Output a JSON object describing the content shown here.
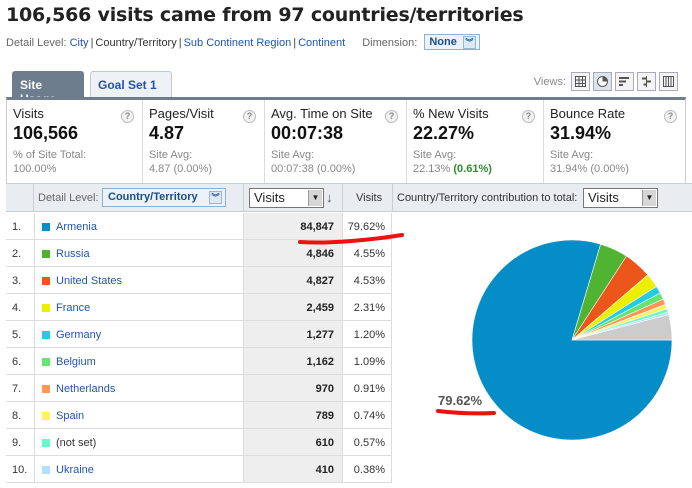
{
  "header": {
    "title": "106,566 visits came from 97 countries/territories"
  },
  "detail_bar": {
    "label": "Detail Level:",
    "city": "City",
    "country": "Country/Territory",
    "sub_continent": "Sub Continent Region",
    "continent": "Continent",
    "separator": "|",
    "dimension_label": "Dimension:",
    "dimension_value": "None"
  },
  "tabs": [
    {
      "label": "Site Usage"
    },
    {
      "label": "Goal Set 1"
    }
  ],
  "views": {
    "label": "Views:",
    "icons": [
      "table-view-icon",
      "pie-view-icon",
      "bar-view-icon",
      "comparison-view-icon",
      "pivot-view-icon"
    ]
  },
  "metrics": [
    {
      "label": "Visits",
      "value": "106,566",
      "sub1": "% of Site Total:",
      "sub2": "100.00%"
    },
    {
      "label": "Pages/Visit",
      "value": "4.87",
      "sub1": "Site Avg:",
      "sub2": "4.87 (0.00%)"
    },
    {
      "label": "Avg. Time on Site",
      "value": "00:07:38",
      "sub1": "Site Avg:",
      "sub2": "00:07:38 (0.00%)"
    },
    {
      "label": "% New Visits",
      "value": "22.27%",
      "sub1": "Site Avg:",
      "sub2a": "22.13% ",
      "sub2b": "(0.61%)"
    },
    {
      "label": "Bounce Rate",
      "value": "31.94%",
      "sub1": "Site Avg:",
      "sub2": "31.94% (0.00%)"
    }
  ],
  "help_glyph": "?",
  "table_header": {
    "detail_label": "Detail Level:",
    "detail_value": "Country/Territory",
    "metric_select": "Visits",
    "sort_glyph": "↓",
    "col_visits": "Visits",
    "contrib_label": "Country/Territory contribution to total:",
    "contrib_select": "Visits"
  },
  "rows": [
    {
      "num": "1.",
      "name": "Armenia",
      "visits": "84,847",
      "pct": "79.62%",
      "color": "#058dc7"
    },
    {
      "num": "2.",
      "name": "Russia",
      "visits": "4,846",
      "pct": "4.55%",
      "color": "#50b432"
    },
    {
      "num": "3.",
      "name": "United States",
      "visits": "4,827",
      "pct": "4.53%",
      "color": "#ed561b"
    },
    {
      "num": "4.",
      "name": "France",
      "visits": "2,459",
      "pct": "2.31%",
      "color": "#edef00"
    },
    {
      "num": "5.",
      "name": "Germany",
      "visits": "1,277",
      "pct": "1.20%",
      "color": "#24cbe5"
    },
    {
      "num": "6.",
      "name": "Belgium",
      "visits": "1,162",
      "pct": "1.09%",
      "color": "#64e572"
    },
    {
      "num": "7.",
      "name": "Netherlands",
      "visits": "970",
      "pct": "0.91%",
      "color": "#ff9655"
    },
    {
      "num": "8.",
      "name": "Spain",
      "visits": "789",
      "pct": "0.74%",
      "color": "#fff263"
    },
    {
      "num": "9.",
      "name": "(not set)",
      "visits": "610",
      "pct": "0.57%",
      "color": "#6af9c4"
    },
    {
      "num": "10.",
      "name": "Ukraine",
      "visits": "410",
      "pct": "0.38%",
      "color": "#b2deff"
    }
  ],
  "pie": {
    "label": "79.62%",
    "other_color": "#cccccc",
    "slices": [
      79.62,
      4.55,
      4.53,
      2.31,
      1.2,
      1.09,
      0.91,
      0.74,
      0.57,
      0.38
    ],
    "other_pct": 4.1
  },
  "annotation_color": "#ee1111"
}
